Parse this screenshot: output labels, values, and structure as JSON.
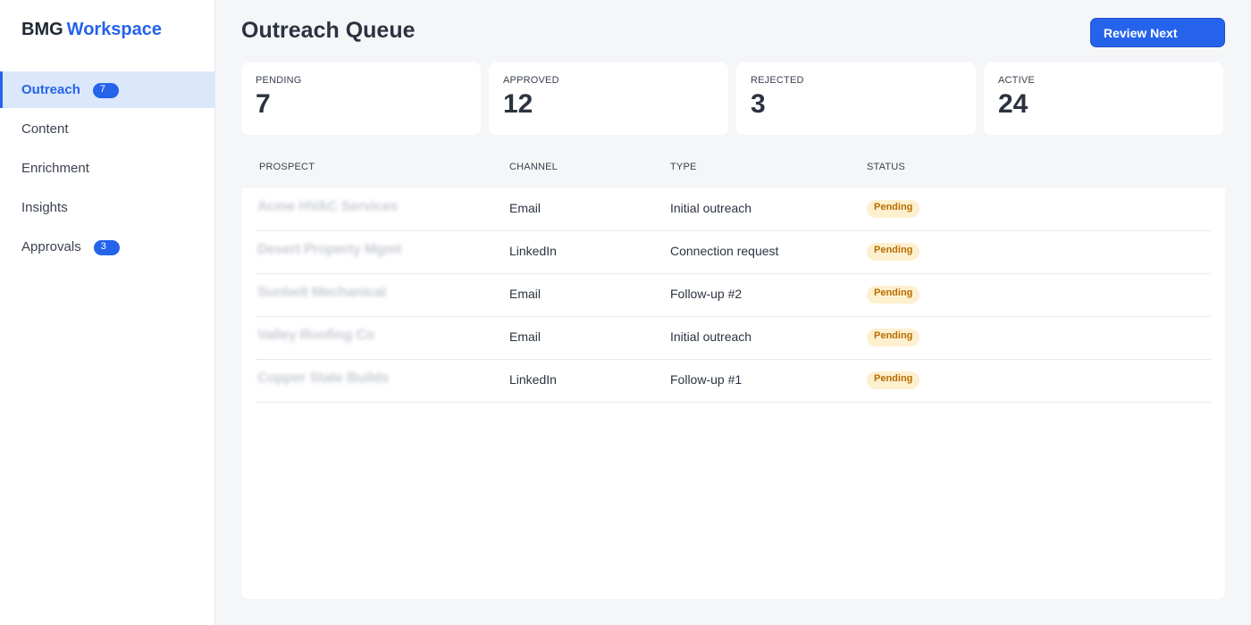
{
  "brand": {
    "name": "BMG",
    "accent": "Workspace"
  },
  "sidebar": {
    "items": [
      {
        "label": "Outreach",
        "badge": "7",
        "active": true
      },
      {
        "label": "Content",
        "badge": ""
      },
      {
        "label": "Enrichment",
        "badge": ""
      },
      {
        "label": "Insights",
        "badge": ""
      },
      {
        "label": "Approvals",
        "badge": "3"
      }
    ]
  },
  "header": {
    "title": "Outreach Queue",
    "review_label": "Review Next"
  },
  "stats": [
    {
      "label": "PENDING",
      "value": "7"
    },
    {
      "label": "APPROVED",
      "value": "12"
    },
    {
      "label": "REJECTED",
      "value": "3"
    },
    {
      "label": "ACTIVE",
      "value": "24"
    }
  ],
  "table": {
    "columns": [
      "PROSPECT",
      "CHANNEL",
      "TYPE",
      "STATUS"
    ],
    "rows": [
      {
        "prospect": "Acme HVAC Services",
        "channel": "Email",
        "type": "Initial outreach",
        "status": "Pending"
      },
      {
        "prospect": "Desert Property Mgmt",
        "channel": "LinkedIn",
        "type": "Connection request",
        "status": "Pending"
      },
      {
        "prospect": "Sunbelt Mechanical",
        "channel": "Email",
        "type": "Follow-up #2",
        "status": "Pending"
      },
      {
        "prospect": "Valley Roofing Co",
        "channel": "Email",
        "type": "Initial outreach",
        "status": "Pending"
      },
      {
        "prospect": "Copper State Builds",
        "channel": "LinkedIn",
        "type": "Follow-up #1",
        "status": "Pending"
      }
    ]
  },
  "colors": {
    "accent": "#2563eb",
    "pending_bg": "#fdf0cf",
    "pending_text": "#b86e00"
  }
}
